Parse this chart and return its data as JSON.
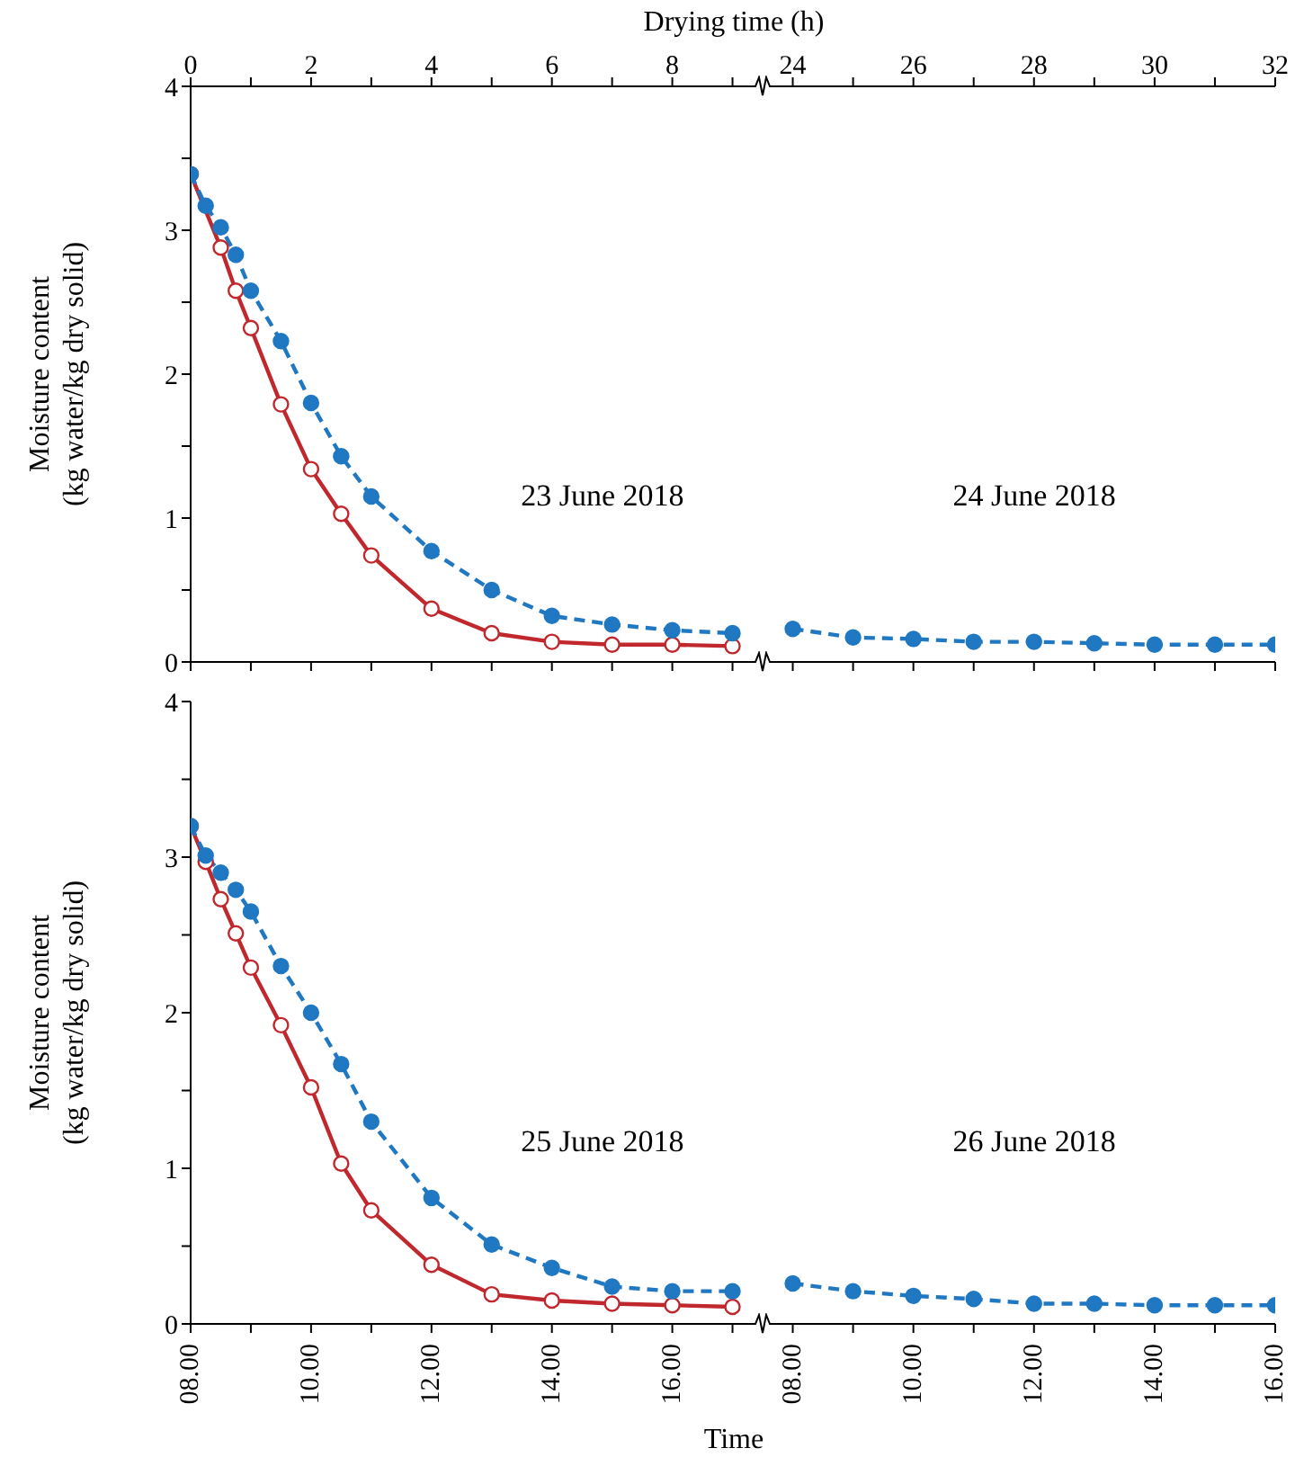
{
  "chart_data": [
    {
      "type": "line",
      "ylabel": "Moisture content\n(kg water/kg dry solid)",
      "x2label": "Drying time (h)",
      "annotations": [
        "23 June 2018"
      ],
      "x": [
        0,
        0.25,
        0.5,
        0.75,
        1,
        1.5,
        2,
        2.5,
        3,
        4,
        5,
        6,
        7,
        8,
        9
      ],
      "series": [
        {
          "color": "#1f78c1",
          "line_style": "dashed",
          "values": [
            3.39,
            3.17,
            3.02,
            2.83,
            2.58,
            2.23,
            1.8,
            1.43,
            1.15,
            0.77,
            0.5,
            0.32,
            0.26,
            0.22,
            0.2
          ]
        },
        {
          "color": "#c0282d",
          "line_style": "solid",
          "values": [
            3.39,
            null,
            2.88,
            2.58,
            2.32,
            1.79,
            1.34,
            1.03,
            0.74,
            0.37,
            0.2,
            0.14,
            0.12,
            0.12,
            0.11
          ]
        }
      ],
      "marker": "circle",
      "xlim": [
        0,
        9.5
      ],
      "xticks": [
        0,
        1,
        2,
        3,
        4,
        5,
        6,
        7,
        8,
        9
      ],
      "x2lim": [
        0,
        9.5
      ],
      "x2ticks": [
        0,
        {
          "value": 1,
          "label": null
        },
        2,
        {
          "value": 3,
          "label": null
        },
        4,
        {
          "value": 5,
          "label": null
        },
        6,
        {
          "value": 7,
          "label": null
        },
        8,
        {
          "value": 9,
          "label": null
        }
      ],
      "ylim": [
        0,
        4
      ],
      "yticks": [
        0,
        {
          "value": 0.5,
          "label": null
        },
        1,
        {
          "value": 1.5,
          "label": null
        },
        2,
        {
          "value": 2.5,
          "label": null
        },
        3,
        {
          "value": 3.5,
          "label": null
        },
        4
      ],
      "tick_labels": "y",
      "grid": false,
      "legend": false
    },
    {
      "type": "line",
      "annotations": [
        "24 June 2018"
      ],
      "x": [
        24,
        25,
        26,
        27,
        28,
        29,
        30,
        31,
        32
      ],
      "series": [
        {
          "color": "#1f78c1",
          "line_style": "dashed",
          "values": [
            0.23,
            0.17,
            0.16,
            0.14,
            0.14,
            0.13,
            0.12,
            0.12,
            0.12
          ]
        }
      ],
      "marker": "circle",
      "xlim": [
        23.5,
        32
      ],
      "xticks": [
        24,
        25,
        26,
        27,
        28,
        29,
        30,
        31,
        32
      ],
      "x2lim": [
        23.5,
        32
      ],
      "x2ticks": [
        24,
        {
          "value": 25,
          "label": null
        },
        26,
        {
          "value": 27,
          "label": null
        },
        28,
        {
          "value": 29,
          "label": null
        },
        30,
        {
          "value": 31,
          "label": null
        },
        32
      ],
      "ylim": [
        0,
        4
      ],
      "tick_labels": false,
      "grid": false,
      "legend": false
    },
    {
      "type": "line",
      "ylabel": "Moisture content\n(kg water/kg dry solid)",
      "xlabel": "Time",
      "annotations": [
        "25 June 2018"
      ],
      "x": [
        8,
        8.25,
        8.5,
        8.75,
        9,
        9.5,
        10,
        10.5,
        11,
        12,
        13,
        14,
        15,
        16,
        17
      ],
      "series": [
        {
          "color": "#1f78c1",
          "line_style": "dashed",
          "values": [
            3.2,
            3.01,
            2.9,
            2.79,
            2.65,
            2.3,
            2.0,
            1.67,
            1.3,
            0.81,
            0.51,
            0.36,
            0.24,
            0.21,
            0.21
          ]
        },
        {
          "color": "#c0282d",
          "line_style": "solid",
          "values": [
            3.2,
            2.97,
            2.73,
            2.51,
            2.29,
            1.92,
            1.52,
            1.03,
            0.73,
            0.38,
            0.19,
            0.15,
            0.13,
            0.12,
            0.11
          ]
        }
      ],
      "marker": "circle",
      "xlim": [
        8,
        17.5
      ],
      "xticks": [
        {
          "value": 8,
          "label": "08.00"
        },
        {
          "value": 9,
          "label": null
        },
        {
          "value": 10,
          "label": "10.00"
        },
        {
          "value": 11,
          "label": null
        },
        {
          "value": 12,
          "label": "12.00"
        },
        {
          "value": 13,
          "label": null
        },
        {
          "value": 14,
          "label": "14.00"
        },
        {
          "value": 15,
          "label": null
        },
        {
          "value": 16,
          "label": "16.00"
        },
        {
          "value": 17,
          "label": null
        }
      ],
      "ylim": [
        0,
        4
      ],
      "yticks": [
        0,
        {
          "value": 0.5,
          "label": null
        },
        1,
        {
          "value": 1.5,
          "label": null
        },
        2,
        {
          "value": 2.5,
          "label": null
        },
        3,
        {
          "value": 3.5,
          "label": null
        },
        4
      ],
      "grid": false,
      "legend": false
    },
    {
      "type": "line",
      "annotations": [
        "26 June 2018"
      ],
      "x": [
        8,
        9,
        10,
        11,
        12,
        13,
        14,
        15,
        16
      ],
      "series": [
        {
          "color": "#1f78c1",
          "line_style": "dashed",
          "values": [
            0.26,
            0.21,
            0.18,
            0.16,
            0.13,
            0.13,
            0.12,
            0.12,
            0.12
          ]
        }
      ],
      "marker": "circle",
      "xlim": [
        7.5,
        16
      ],
      "xticks": [
        {
          "value": 8,
          "label": "08.00"
        },
        {
          "value": 9,
          "label": null
        },
        {
          "value": 10,
          "label": "10.00"
        },
        {
          "value": 11,
          "label": null
        },
        {
          "value": 12,
          "label": "12.00"
        },
        {
          "value": 13,
          "label": null
        },
        {
          "value": 14,
          "label": "14.00"
        },
        {
          "value": 15,
          "label": null
        },
        {
          "value": 16,
          "label": "16.00"
        }
      ],
      "ylim": [
        0,
        4
      ],
      "tick_labels": "x",
      "grid": false,
      "legend": false
    }
  ]
}
